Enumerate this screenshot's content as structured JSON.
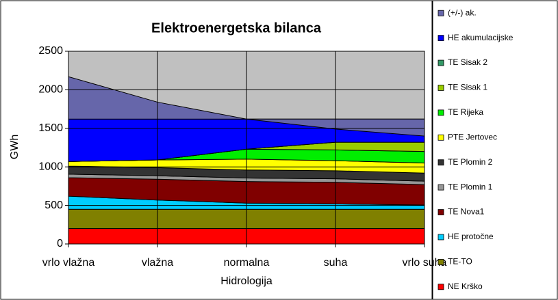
{
  "chart_data": {
    "type": "area",
    "stacked": true,
    "title": "Elektroenergetska bilanca",
    "xlabel": "Hidrologija",
    "ylabel": "GWh",
    "categories": [
      "vrlo vlažna",
      "vlažna",
      "normalna",
      "suha",
      "vrlo suha"
    ],
    "ylim": [
      0,
      2500
    ],
    "yticks": [
      0,
      500,
      1000,
      1500,
      2000,
      2500
    ],
    "grid": true,
    "legend": "right",
    "series": [
      {
        "name": "(+/-) ak.",
        "color": "#6666aa",
        "values": [
          550,
          220,
          0,
          -130,
          -220
        ]
      },
      {
        "name": "HE akumulacijske",
        "color": "#0000ff",
        "values": [
          550,
          530,
          390,
          300,
          300
        ]
      },
      {
        "name": "TE Sisak 2",
        "color": "#339966",
        "values": [
          0,
          0,
          0,
          0,
          0
        ]
      },
      {
        "name": "TE Sisak 1",
        "color": "#99cc00",
        "values": [
          0,
          0,
          0,
          100,
          120
        ]
      },
      {
        "name": "TE Rijeka",
        "color": "#00ee00",
        "values": [
          0,
          0,
          130,
          140,
          150
        ]
      },
      {
        "name": "PTE Jertovec",
        "color": "#ffff00",
        "values": [
          60,
          100,
          140,
          130,
          130
        ]
      },
      {
        "name": "TE Plomin 2",
        "color": "#333333",
        "values": [
          105,
          105,
          105,
          105,
          105
        ]
      },
      {
        "name": "TE Plomin 1",
        "color": "#969696",
        "values": [
          45,
          45,
          45,
          45,
          45
        ]
      },
      {
        "name": "TE Nova1",
        "color": "#800000",
        "values": [
          240,
          270,
          280,
          280,
          265
        ]
      },
      {
        "name": "HE protočne",
        "color": "#00ccff",
        "values": [
          170,
          120,
          80,
          70,
          55
        ]
      },
      {
        "name": "TE-TO",
        "color": "#808000",
        "values": [
          250,
          250,
          250,
          250,
          250
        ]
      },
      {
        "name": "NE Krško",
        "color": "#ff0000",
        "values": [
          200,
          200,
          200,
          200,
          200
        ]
      }
    ]
  }
}
